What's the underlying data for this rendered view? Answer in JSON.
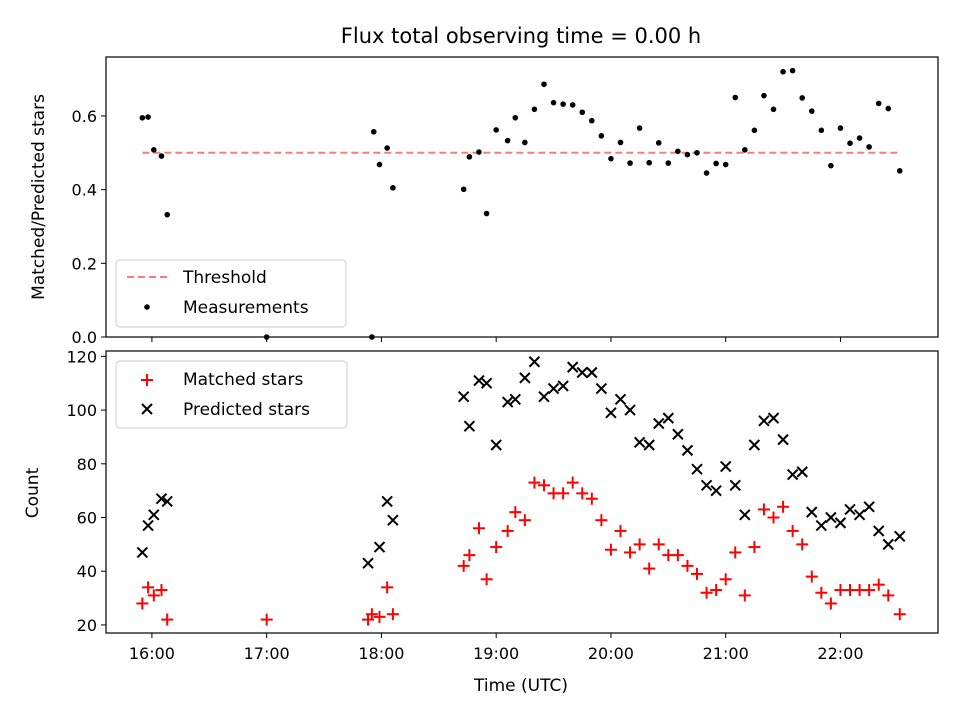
{
  "chart_data": [
    {
      "type": "scatter",
      "title": "Flux total observing time = 0.00 h",
      "ylabel": "Matched/Predicted stars",
      "xlabel": "",
      "xlim": [
        "15:36",
        "22:51"
      ],
      "ylim": [
        0,
        0.76
      ],
      "yticks": [
        0.0,
        0.2,
        0.4,
        0.6
      ],
      "ytick_labels": [
        "0.0",
        "0.2",
        "0.4",
        "0.6"
      ],
      "legend_location": "lower left",
      "threshold": {
        "name": "Threshold",
        "value": 0.5,
        "x_start": "15:55",
        "x_end": "22:31",
        "color": "#f08080",
        "style": "dashed"
      },
      "series": [
        {
          "name": "Measurements",
          "color": "#000000",
          "marker": "dot",
          "points": [
            [
              "15:55",
              0.595
            ],
            [
              "15:58",
              0.597
            ],
            [
              "16:01",
              0.508
            ],
            [
              "16:05",
              0.491
            ],
            [
              "16:08",
              0.332
            ],
            [
              "17:00",
              0.0
            ],
            [
              "17:55",
              0.0
            ],
            [
              "17:56",
              0.557
            ],
            [
              "17:59",
              0.468
            ],
            [
              "18:03",
              0.513
            ],
            [
              "18:06",
              0.405
            ],
            [
              "18:43",
              0.401
            ],
            [
              "18:46",
              0.489
            ],
            [
              "18:51",
              0.502
            ],
            [
              "18:55",
              0.335
            ],
            [
              "19:00",
              0.562
            ],
            [
              "19:06",
              0.533
            ],
            [
              "19:10",
              0.595
            ],
            [
              "19:15",
              0.528
            ],
            [
              "19:20",
              0.618
            ],
            [
              "19:25",
              0.686
            ],
            [
              "19:30",
              0.636
            ],
            [
              "19:35",
              0.632
            ],
            [
              "19:40",
              0.63
            ],
            [
              "19:45",
              0.61
            ],
            [
              "19:50",
              0.587
            ],
            [
              "19:55",
              0.546
            ],
            [
              "20:00",
              0.484
            ],
            [
              "20:05",
              0.528
            ],
            [
              "20:10",
              0.472
            ],
            [
              "20:15",
              0.567
            ],
            [
              "20:20",
              0.473
            ],
            [
              "20:25",
              0.527
            ],
            [
              "20:30",
              0.472
            ],
            [
              "20:35",
              0.504
            ],
            [
              "20:40",
              0.495
            ],
            [
              "20:45",
              0.5
            ],
            [
              "20:50",
              0.445
            ],
            [
              "20:55",
              0.471
            ],
            [
              "21:00",
              0.468
            ],
            [
              "21:05",
              0.65
            ],
            [
              "21:10",
              0.508
            ],
            [
              "21:15",
              0.561
            ],
            [
              "21:20",
              0.655
            ],
            [
              "21:25",
              0.618
            ],
            [
              "21:30",
              0.72
            ],
            [
              "21:35",
              0.723
            ],
            [
              "21:40",
              0.649
            ],
            [
              "21:45",
              0.613
            ],
            [
              "21:50",
              0.561
            ],
            [
              "21:55",
              0.465
            ],
            [
              "22:00",
              0.567
            ],
            [
              "22:05",
              0.526
            ],
            [
              "22:10",
              0.54
            ],
            [
              "22:15",
              0.516
            ],
            [
              "22:20",
              0.634
            ],
            [
              "22:25",
              0.62
            ],
            [
              "22:31",
              0.451
            ]
          ]
        }
      ]
    },
    {
      "type": "scatter",
      "title": "",
      "xlabel": "Time (UTC)",
      "ylabel": "Count",
      "xlim": [
        "15:36",
        "22:51"
      ],
      "ylim": [
        17,
        122
      ],
      "xticks": [
        "16:00",
        "17:00",
        "18:00",
        "19:00",
        "20:00",
        "21:00",
        "22:00"
      ],
      "xtick_labels": [
        "16:00",
        "17:00",
        "18:00",
        "19:00",
        "20:00",
        "21:00",
        "22:00"
      ],
      "yticks": [
        20,
        40,
        60,
        80,
        100,
        120
      ],
      "ytick_labels": [
        "20",
        "40",
        "60",
        "80",
        "100",
        "120"
      ],
      "legend_location": "upper left",
      "series": [
        {
          "name": "Matched stars",
          "color": "#ff0000",
          "marker": "plus",
          "points": [
            [
              "15:55",
              28
            ],
            [
              "15:58",
              34
            ],
            [
              "16:01",
              31
            ],
            [
              "16:05",
              33
            ],
            [
              "16:08",
              22
            ],
            [
              "17:00",
              22
            ],
            [
              "17:53",
              22
            ],
            [
              "17:55",
              24
            ],
            [
              "17:59",
              23
            ],
            [
              "18:03",
              34
            ],
            [
              "18:06",
              24
            ],
            [
              "18:43",
              42
            ],
            [
              "18:46",
              46
            ],
            [
              "18:51",
              56
            ],
            [
              "18:55",
              37
            ],
            [
              "19:00",
              49
            ],
            [
              "19:06",
              55
            ],
            [
              "19:10",
              62
            ],
            [
              "19:15",
              59
            ],
            [
              "19:20",
              73
            ],
            [
              "19:25",
              72
            ],
            [
              "19:30",
              69
            ],
            [
              "19:35",
              69
            ],
            [
              "19:40",
              73
            ],
            [
              "19:45",
              69
            ],
            [
              "19:50",
              67
            ],
            [
              "19:55",
              59
            ],
            [
              "20:00",
              48
            ],
            [
              "20:05",
              55
            ],
            [
              "20:10",
              47
            ],
            [
              "20:15",
              50
            ],
            [
              "20:20",
              41
            ],
            [
              "20:25",
              50
            ],
            [
              "20:30",
              46
            ],
            [
              "20:35",
              46
            ],
            [
              "20:40",
              42
            ],
            [
              "20:45",
              39
            ],
            [
              "20:50",
              32
            ],
            [
              "20:55",
              33
            ],
            [
              "21:00",
              37
            ],
            [
              "21:05",
              47
            ],
            [
              "21:10",
              31
            ],
            [
              "21:15",
              49
            ],
            [
              "21:20",
              63
            ],
            [
              "21:25",
              60
            ],
            [
              "21:30",
              64
            ],
            [
              "21:35",
              55
            ],
            [
              "21:40",
              50
            ],
            [
              "21:45",
              38
            ],
            [
              "21:50",
              32
            ],
            [
              "21:55",
              28
            ],
            [
              "22:00",
              33
            ],
            [
              "22:05",
              33
            ],
            [
              "22:10",
              33
            ],
            [
              "22:15",
              33
            ],
            [
              "22:20",
              35
            ],
            [
              "22:25",
              31
            ],
            [
              "22:31",
              24
            ]
          ]
        },
        {
          "name": "Predicted stars",
          "color": "#000000",
          "marker": "x",
          "points": [
            [
              "15:55",
              47
            ],
            [
              "15:58",
              57
            ],
            [
              "16:01",
              61
            ],
            [
              "16:05",
              67
            ],
            [
              "16:08",
              66
            ],
            [
              "17:53",
              43
            ],
            [
              "17:59",
              49
            ],
            [
              "18:03",
              66
            ],
            [
              "18:06",
              59
            ],
            [
              "18:43",
              105
            ],
            [
              "18:46",
              94
            ],
            [
              "18:51",
              111
            ],
            [
              "18:55",
              110
            ],
            [
              "19:00",
              87
            ],
            [
              "19:06",
              103
            ],
            [
              "19:10",
              104
            ],
            [
              "19:15",
              112
            ],
            [
              "19:20",
              118
            ],
            [
              "19:25",
              105
            ],
            [
              "19:30",
              108
            ],
            [
              "19:35",
              109
            ],
            [
              "19:40",
              116
            ],
            [
              "19:45",
              114
            ],
            [
              "19:50",
              114
            ],
            [
              "19:55",
              108
            ],
            [
              "20:00",
              99
            ],
            [
              "20:05",
              104
            ],
            [
              "20:10",
              100
            ],
            [
              "20:15",
              88
            ],
            [
              "20:20",
              87
            ],
            [
              "20:25",
              95
            ],
            [
              "20:30",
              97
            ],
            [
              "20:35",
              91
            ],
            [
              "20:40",
              85
            ],
            [
              "20:45",
              78
            ],
            [
              "20:50",
              72
            ],
            [
              "20:55",
              70
            ],
            [
              "21:00",
              79
            ],
            [
              "21:05",
              72
            ],
            [
              "21:10",
              61
            ],
            [
              "21:15",
              87
            ],
            [
              "21:20",
              96
            ],
            [
              "21:25",
              97
            ],
            [
              "21:30",
              89
            ],
            [
              "21:35",
              76
            ],
            [
              "21:40",
              77
            ],
            [
              "21:45",
              62
            ],
            [
              "21:50",
              57
            ],
            [
              "21:55",
              60
            ],
            [
              "22:00",
              58
            ],
            [
              "22:05",
              63
            ],
            [
              "22:10",
              61
            ],
            [
              "22:15",
              64
            ],
            [
              "22:20",
              55
            ],
            [
              "22:25",
              50
            ],
            [
              "22:31",
              53
            ]
          ]
        }
      ]
    }
  ]
}
